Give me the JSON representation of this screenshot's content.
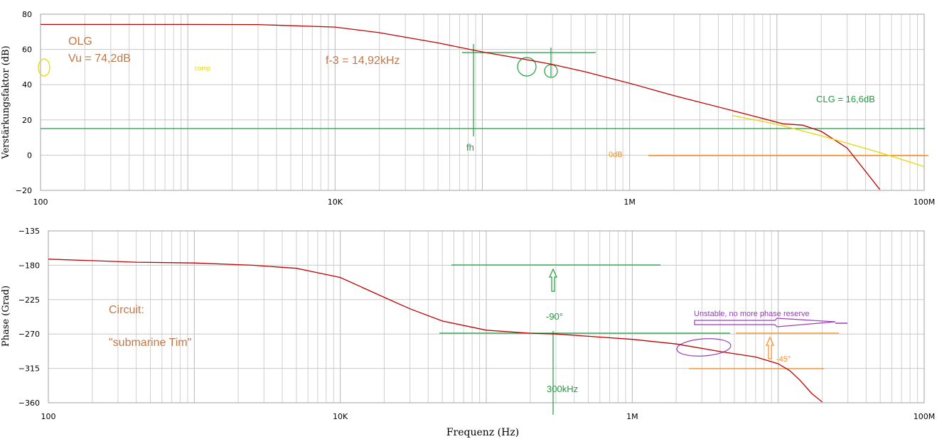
{
  "chart_data": [
    {
      "type": "line",
      "title": "",
      "ylabel": "Verstärkungsfaktor (dB)",
      "xlabel": "",
      "xscale": "log",
      "xlim": [
        100,
        100000000
      ],
      "ylim": [
        -20,
        80
      ],
      "yticks": [
        80,
        60,
        40,
        20,
        0,
        -20
      ],
      "xticklabels": [
        "100",
        "10K",
        "1M",
        "100M"
      ],
      "grid": true,
      "series": [
        {
          "color": "#c00000",
          "x": [
            100,
            300,
            1000,
            3000,
            10000,
            20000,
            50000,
            100000,
            200000,
            300000,
            500000,
            1000000,
            2000000,
            5000000,
            8000000,
            11000000,
            15000000,
            20000000,
            30000000,
            50000000
          ],
          "y": [
            74.2,
            74.2,
            74.2,
            74.1,
            72.7,
            69.5,
            63.7,
            58.6,
            54.2,
            51.5,
            47.3,
            40.8,
            33.8,
            25.3,
            20.8,
            17.8,
            17.0,
            13.5,
            4,
            -19.5
          ]
        },
        {
          "color": "#e6d800",
          "x": [
            5000000,
            10000000,
            20000000,
            50000000,
            100000000
          ],
          "y": [
            22.5,
            17.5,
            11,
            1.5,
            -6.5
          ]
        }
      ],
      "annotations": [
        {
          "text": "OLG",
          "color": "#c0784a"
        },
        {
          "text": "Vu = 74,2dB",
          "color": "#c0784a"
        },
        {
          "text": "f-3 = 14,92kHz",
          "color": "#c0784a"
        },
        {
          "text": "comp",
          "color": "#e6d800"
        },
        {
          "text": "fh",
          "color": "#1e9e3c"
        },
        {
          "text": "0dB",
          "color": "#ff8c1a"
        },
        {
          "text": "CLG = 16,6dB",
          "color": "#1e9e3c"
        }
      ]
    },
    {
      "type": "line",
      "title": "",
      "ylabel": "Phase (Grad)",
      "xlabel": "Frequenz (Hz)",
      "xscale": "log",
      "xlim": [
        100,
        100000000
      ],
      "ylim": [
        -360,
        -135
      ],
      "yticks": [
        -135,
        -180,
        -225,
        -270,
        -315,
        -360
      ],
      "xticklabels": [
        "100",
        "10K",
        "1M",
        "100M"
      ],
      "grid": true,
      "series": [
        {
          "color": "#c00000",
          "x": [
            100,
            200,
            400,
            1000,
            2500,
            5000,
            10000,
            20000,
            30000,
            50000,
            100000,
            200000,
            300000,
            500000,
            1000000,
            2000000,
            4000000,
            7000000,
            10000000,
            12000000,
            14000000,
            17000000,
            20000000
          ],
          "y": [
            -172,
            -174,
            -176,
            -177,
            -180,
            -184,
            -196,
            -222,
            -237,
            -253,
            -265,
            -269,
            -270,
            -273,
            -277,
            -283,
            -293,
            -300,
            -309,
            -318,
            -330,
            -348,
            -359
          ]
        }
      ],
      "annotations": [
        {
          "text": "Circuit:",
          "color": "#c0784a"
        },
        {
          "text": "\"submarine Tim\"",
          "color": "#c0784a"
        },
        {
          "text": "-90°",
          "color": "#1e9e3c"
        },
        {
          "text": "300kHz",
          "color": "#1e9e3c"
        },
        {
          "text": "Unstable, no more phase reserve",
          "color": "#9a3db8"
        },
        {
          "text": "-45°",
          "color": "#ff8c1a"
        }
      ]
    }
  ]
}
